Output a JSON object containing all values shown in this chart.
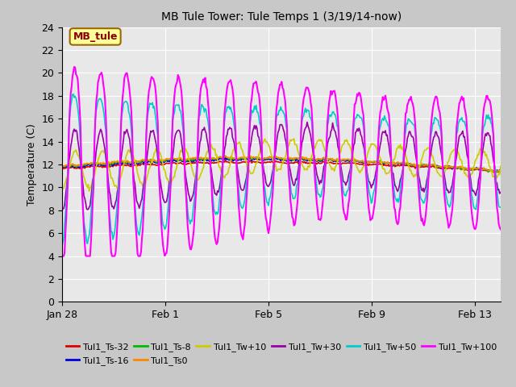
{
  "title": "MB Tule Tower: Tule Temps 1 (3/19/14-now)",
  "ylabel": "Temperature (C)",
  "ylim": [
    0,
    24
  ],
  "yticks": [
    0,
    2,
    4,
    6,
    8,
    10,
    12,
    14,
    16,
    18,
    20,
    22,
    24
  ],
  "xlim": [
    0,
    17
  ],
  "xtick_labels": [
    "Jan 28",
    "Feb 1",
    "Feb 5",
    "Feb 9",
    "Feb 13"
  ],
  "xtick_positions": [
    0,
    4,
    8,
    12,
    16
  ],
  "fig_bg_color": "#c8c8c8",
  "plot_bg_color": "#e8e8e8",
  "legend_label": "MB_tule",
  "legend_box_facecolor": "#ffff99",
  "legend_box_edgecolor": "#996600",
  "legend_label_color": "#880000",
  "series": [
    {
      "label": "Tul1_Ts-32",
      "color": "#dd0000"
    },
    {
      "label": "Tul1_Ts-16",
      "color": "#0000dd"
    },
    {
      "label": "Tul1_Ts-8",
      "color": "#00bb00"
    },
    {
      "label": "Tul1_Ts0",
      "color": "#ff8800"
    },
    {
      "label": "Tul1_Tw+10",
      "color": "#cccc00"
    },
    {
      "label": "Tul1_Tw+30",
      "color": "#9900aa"
    },
    {
      "label": "Tul1_Tw+50",
      "color": "#00cccc"
    },
    {
      "label": "Tul1_Tw+100",
      "color": "#ff00ff"
    }
  ],
  "grid_color": "#ffffff",
  "tick_fontsize": 9,
  "title_fontsize": 10,
  "label_fontsize": 9,
  "legend_fontsize": 8
}
